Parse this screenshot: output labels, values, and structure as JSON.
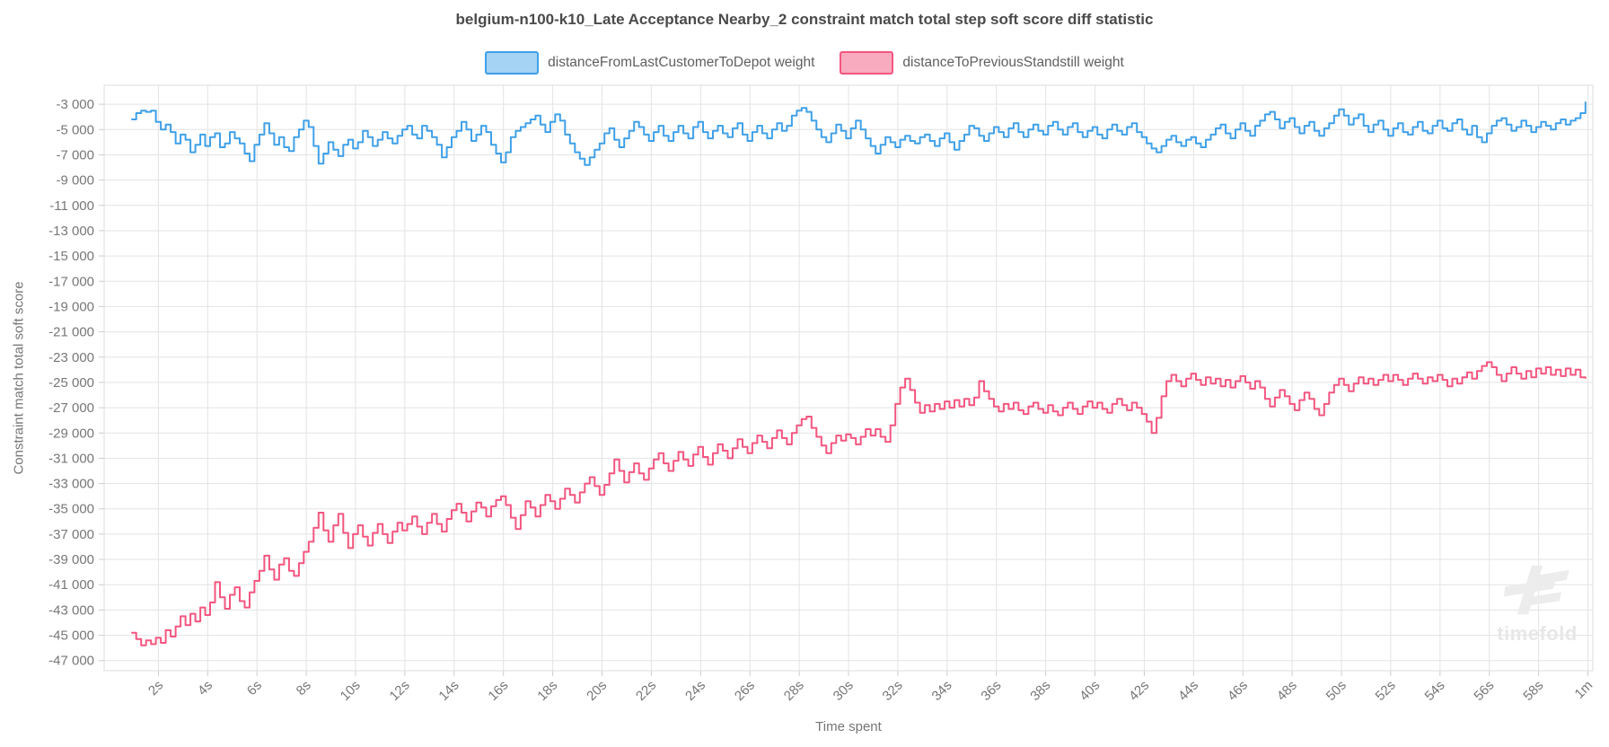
{
  "title": "belgium-n100-k10_Late Acceptance Nearby_2 constraint match total step soft score diff statistic",
  "watermark": {
    "text": "timefold"
  },
  "chart_data": {
    "type": "line",
    "title": "belgium-n100-k10_Late Acceptance Nearby_2 constraint match total step soft score diff statistic",
    "xlabel": "Time spent",
    "ylabel": "Constraint match total soft score",
    "grid": true,
    "legend_position": "top",
    "line_style": "step-after",
    "xlim_seconds": [
      -0.2,
      60.2
    ],
    "ylim": [
      -47800,
      -1500
    ],
    "x_tick_labels": [
      "2s",
      "4s",
      "6s",
      "8s",
      "10s",
      "12s",
      "14s",
      "16s",
      "18s",
      "20s",
      "22s",
      "24s",
      "26s",
      "28s",
      "30s",
      "32s",
      "34s",
      "36s",
      "38s",
      "40s",
      "42s",
      "44s",
      "46s",
      "48s",
      "50s",
      "52s",
      "54s",
      "56s",
      "58s",
      "1m"
    ],
    "x_tick_seconds": [
      2,
      4,
      6,
      8,
      10,
      12,
      14,
      16,
      18,
      20,
      22,
      24,
      26,
      28,
      30,
      32,
      34,
      36,
      38,
      40,
      42,
      44,
      46,
      48,
      50,
      52,
      54,
      56,
      58,
      60
    ],
    "y_tick_labels": [
      "-3 000",
      "-5 000",
      "-7 000",
      "-9 000",
      "-11 000",
      "-13 000",
      "-15 000",
      "-17 000",
      "-19 000",
      "-21 000",
      "-23 000",
      "-25 000",
      "-27 000",
      "-29 000",
      "-31 000",
      "-33 000",
      "-35 000",
      "-37 000",
      "-39 000",
      "-41 000",
      "-43 000",
      "-45 000",
      "-47 000"
    ],
    "y_tick_values": [
      -3000,
      -5000,
      -7000,
      -9000,
      -11000,
      -13000,
      -15000,
      -17000,
      -19000,
      -21000,
      -23000,
      -25000,
      -27000,
      -29000,
      -31000,
      -33000,
      -35000,
      -37000,
      -39000,
      -41000,
      -43000,
      -45000,
      -47000
    ],
    "series": [
      {
        "name": "distanceFromLastCustomerToDepot weight",
        "color": "#3fa0e8",
        "legend_fill": "#a5d3f4",
        "t0": 0.9,
        "dt": 0.2,
        "values": [
          -4200,
          -3700,
          -3500,
          -3600,
          -3500,
          -4400,
          -5000,
          -4600,
          -5200,
          -6100,
          -5400,
          -5800,
          -6800,
          -6200,
          -5400,
          -6300,
          -5600,
          -5300,
          -6400,
          -6100,
          -5200,
          -5700,
          -6100,
          -6900,
          -7500,
          -6200,
          -5400,
          -4500,
          -5300,
          -6200,
          -5600,
          -6400,
          -6700,
          -5600,
          -5000,
          -4300,
          -4800,
          -6300,
          -7700,
          -6900,
          -6000,
          -6600,
          -7100,
          -6200,
          -5800,
          -6500,
          -6000,
          -5100,
          -5600,
          -6300,
          -5800,
          -5200,
          -5700,
          -6100,
          -5500,
          -5000,
          -4700,
          -5400,
          -5700,
          -4700,
          -5100,
          -5600,
          -6200,
          -7200,
          -6400,
          -5600,
          -5100,
          -4400,
          -5000,
          -5900,
          -5400,
          -4700,
          -5200,
          -6200,
          -6900,
          -7600,
          -6800,
          -5600,
          -5100,
          -4800,
          -4500,
          -4200,
          -3900,
          -4600,
          -5200,
          -4400,
          -3800,
          -4300,
          -5400,
          -6100,
          -6800,
          -7300,
          -7800,
          -7200,
          -6600,
          -6100,
          -5300,
          -4900,
          -5800,
          -6400,
          -5700,
          -5100,
          -4400,
          -4800,
          -5400,
          -5900,
          -5200,
          -4700,
          -5500,
          -5900,
          -5200,
          -4700,
          -5300,
          -5700,
          -4800,
          -4400,
          -5200,
          -5700,
          -5100,
          -4700,
          -5300,
          -5600,
          -4900,
          -4500,
          -5400,
          -5900,
          -5200,
          -4700,
          -5300,
          -5700,
          -5000,
          -4500,
          -5100,
          -4700,
          -3900,
          -3500,
          -3300,
          -3600,
          -4300,
          -5000,
          -5600,
          -6000,
          -5300,
          -4600,
          -5100,
          -5700,
          -4900,
          -4300,
          -5000,
          -5700,
          -6300,
          -6900,
          -6200,
          -5600,
          -6000,
          -6400,
          -5800,
          -5500,
          -5900,
          -6100,
          -5600,
          -5400,
          -5900,
          -6300,
          -5700,
          -5300,
          -6000,
          -6600,
          -5900,
          -5400,
          -4700,
          -4900,
          -5500,
          -5900,
          -5300,
          -4800,
          -5200,
          -5600,
          -4900,
          -4500,
          -5200,
          -5600,
          -5000,
          -4600,
          -5100,
          -5400,
          -4700,
          -4400,
          -5000,
          -5400,
          -4800,
          -4500,
          -5200,
          -5600,
          -5100,
          -4800,
          -5400,
          -5700,
          -5000,
          -4600,
          -5100,
          -5400,
          -4800,
          -4500,
          -5200,
          -5600,
          -6100,
          -6500,
          -6800,
          -6300,
          -5800,
          -5500,
          -6000,
          -6300,
          -5800,
          -5600,
          -6100,
          -6400,
          -5800,
          -5400,
          -4900,
          -4600,
          -5300,
          -5700,
          -5000,
          -4500,
          -5100,
          -5500,
          -4700,
          -4300,
          -3800,
          -3600,
          -4200,
          -4900,
          -4400,
          -4100,
          -4800,
          -5300,
          -4700,
          -4400,
          -5100,
          -5500,
          -4900,
          -4500,
          -3900,
          -3400,
          -3900,
          -4600,
          -4100,
          -3800,
          -4700,
          -5200,
          -4600,
          -4300,
          -5000,
          -5500,
          -4900,
          -4500,
          -5200,
          -5400,
          -4800,
          -4400,
          -5100,
          -5300,
          -4700,
          -4300,
          -4900,
          -5100,
          -4500,
          -4200,
          -5000,
          -5400,
          -4700,
          -5600,
          -6000,
          -5300,
          -4700,
          -4300,
          -4100,
          -4600,
          -5100,
          -4800,
          -4300,
          -4700,
          -5200,
          -4800,
          -4400,
          -4700,
          -5000,
          -4500,
          -4200,
          -4600,
          -4300,
          -4100,
          -3700,
          -2800
        ]
      },
      {
        "name": "distanceToPreviousStandstill weight",
        "color": "#f4557f",
        "legend_fill": "#f8abbf",
        "t0": 0.9,
        "dt": 0.2,
        "values": [
          -44800,
          -45300,
          -45800,
          -45400,
          -45700,
          -45200,
          -45600,
          -44600,
          -45100,
          -44300,
          -43500,
          -44200,
          -43300,
          -43900,
          -42800,
          -43400,
          -42400,
          -40800,
          -42000,
          -42900,
          -41800,
          -41200,
          -42300,
          -42800,
          -41600,
          -40700,
          -39900,
          -38700,
          -39800,
          -40600,
          -39400,
          -38900,
          -39900,
          -40300,
          -39300,
          -38400,
          -37600,
          -36500,
          -35300,
          -36700,
          -37600,
          -36300,
          -35400,
          -36900,
          -38100,
          -37000,
          -36300,
          -37200,
          -37900,
          -36900,
          -36200,
          -37000,
          -37700,
          -36800,
          -36100,
          -36700,
          -36200,
          -35600,
          -36400,
          -37000,
          -36100,
          -35400,
          -36200,
          -36800,
          -35800,
          -35100,
          -34600,
          -35300,
          -36000,
          -35200,
          -34500,
          -34900,
          -35600,
          -34800,
          -34300,
          -34000,
          -34700,
          -35700,
          -36600,
          -35500,
          -34400,
          -34900,
          -35600,
          -34700,
          -33900,
          -34400,
          -35000,
          -34200,
          -33400,
          -33900,
          -34500,
          -33700,
          -33000,
          -32500,
          -33200,
          -33900,
          -33100,
          -32200,
          -31100,
          -32000,
          -32900,
          -32100,
          -31400,
          -32200,
          -32700,
          -31800,
          -31100,
          -30600,
          -31400,
          -32000,
          -31200,
          -30500,
          -31100,
          -31600,
          -30700,
          -30100,
          -30900,
          -31500,
          -30600,
          -29900,
          -30400,
          -31000,
          -30200,
          -29500,
          -30100,
          -30600,
          -29800,
          -29200,
          -29700,
          -30200,
          -29400,
          -28800,
          -29400,
          -29900,
          -29000,
          -28400,
          -27900,
          -27700,
          -28600,
          -29300,
          -30000,
          -30600,
          -29800,
          -29200,
          -29600,
          -29100,
          -29400,
          -29900,
          -29300,
          -28700,
          -29200,
          -28700,
          -29300,
          -29700,
          -28400,
          -26700,
          -25400,
          -24700,
          -25600,
          -26600,
          -27400,
          -26800,
          -27300,
          -26700,
          -27100,
          -26500,
          -27000,
          -26400,
          -26900,
          -26300,
          -26800,
          -26200,
          -24900,
          -25700,
          -26300,
          -26900,
          -27300,
          -26700,
          -27100,
          -26600,
          -27200,
          -27500,
          -26900,
          -26600,
          -27100,
          -27400,
          -26800,
          -27300,
          -27600,
          -27000,
          -26600,
          -27100,
          -27500,
          -26900,
          -26500,
          -27000,
          -26600,
          -27100,
          -27400,
          -26700,
          -26300,
          -26800,
          -27200,
          -26600,
          -27000,
          -27500,
          -28100,
          -29000,
          -27800,
          -26100,
          -24900,
          -24400,
          -24900,
          -25300,
          -24700,
          -24300,
          -24800,
          -25200,
          -24600,
          -25100,
          -24700,
          -25300,
          -24800,
          -25400,
          -24900,
          -24500,
          -25000,
          -25500,
          -24900,
          -25400,
          -26300,
          -26900,
          -26200,
          -25600,
          -26100,
          -26700,
          -27200,
          -26400,
          -25800,
          -26300,
          -27100,
          -27600,
          -26700,
          -25800,
          -25200,
          -24700,
          -25200,
          -25700,
          -25100,
          -24600,
          -25100,
          -24700,
          -25200,
          -24800,
          -24400,
          -24900,
          -24400,
          -24800,
          -25200,
          -24700,
          -24300,
          -24700,
          -25100,
          -24600,
          -24900,
          -24400,
          -24800,
          -25300,
          -24700,
          -25100,
          -24600,
          -24200,
          -24700,
          -24100,
          -23700,
          -23400,
          -23800,
          -24400,
          -24900,
          -24300,
          -23800,
          -24300,
          -24700,
          -24100,
          -24600,
          -23900,
          -24300,
          -23800,
          -24400,
          -24000,
          -24500,
          -23900,
          -24400,
          -24000,
          -24600,
          -24700
        ]
      }
    ]
  }
}
